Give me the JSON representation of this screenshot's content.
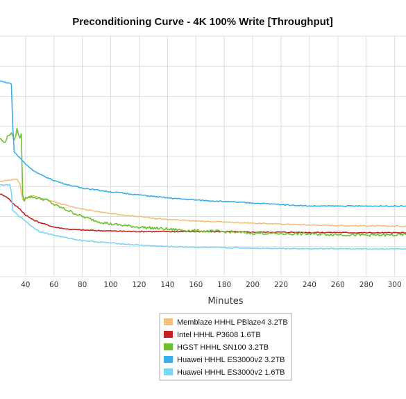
{
  "chart_data": {
    "type": "line",
    "title": "Preconditioning Curve - 4K 100% Write [Throughput]",
    "xlabel": "Minutes",
    "ylabel": "",
    "x_ticks": [
      40,
      60,
      80,
      100,
      120,
      140,
      160,
      180,
      200,
      220,
      240,
      260,
      280,
      300
    ],
    "xlim": [
      22,
      308
    ],
    "ylim": [
      0,
      8
    ],
    "grid": true,
    "legend": "bottom-center",
    "series": [
      {
        "name": "Memblaze HHHL PBlaze4 3.2TB",
        "color": "#f0c07a",
        "x": [
          22,
          26,
          30,
          34,
          36,
          38,
          40,
          45,
          50,
          55,
          60,
          70,
          80,
          90,
          100,
          120,
          140,
          160,
          180,
          200,
          220,
          240,
          260,
          280,
          300,
          308
        ],
        "y": [
          3.15,
          3.2,
          3.22,
          3.25,
          3.1,
          2.55,
          2.6,
          2.7,
          2.62,
          2.55,
          2.5,
          2.35,
          2.25,
          2.17,
          2.1,
          2.0,
          1.9,
          1.85,
          1.82,
          1.78,
          1.75,
          1.72,
          1.7,
          1.69,
          1.68,
          1.68
        ]
      },
      {
        "name": "Intel HHHL P3608 1.6TB",
        "color": "#c62020",
        "x": [
          22,
          25,
          28,
          32,
          36,
          40,
          45,
          50,
          60,
          70,
          80,
          100,
          120,
          140,
          160,
          180,
          200,
          220,
          240,
          260,
          280,
          300,
          308
        ],
        "y": [
          2.75,
          2.7,
          2.6,
          2.4,
          2.25,
          2.05,
          1.9,
          1.8,
          1.65,
          1.58,
          1.55,
          1.52,
          1.5,
          1.5,
          1.5,
          1.5,
          1.48,
          1.48,
          1.47,
          1.47,
          1.46,
          1.46,
          1.46
        ]
      },
      {
        "name": "HGST HHHL SN100 3.2TB",
        "color": "#6cc030",
        "x": [
          22,
          25,
          28,
          30,
          32,
          34,
          36,
          37,
          38,
          39,
          40,
          45,
          50,
          55,
          60,
          70,
          80,
          90,
          100,
          120,
          140,
          160,
          180,
          200,
          220,
          240,
          260,
          280,
          300,
          308
        ],
        "y": [
          4.6,
          4.45,
          4.7,
          4.8,
          4.5,
          4.9,
          4.6,
          4.75,
          2.7,
          2.55,
          2.65,
          2.65,
          2.6,
          2.55,
          2.4,
          2.2,
          2.0,
          1.85,
          1.75,
          1.65,
          1.58,
          1.52,
          1.5,
          1.45,
          1.43,
          1.42,
          1.4,
          1.38,
          1.38,
          1.4
        ]
      },
      {
        "name": "Huawei HHHL ES3000v2 3.2TB",
        "color": "#3aaee6",
        "x": [
          22,
          24,
          26,
          28,
          30,
          31,
          32,
          34,
          36,
          38,
          40,
          45,
          50,
          60,
          70,
          80,
          100,
          120,
          140,
          160,
          180,
          200,
          220,
          240,
          260,
          280,
          300,
          308
        ],
        "y": [
          6.5,
          6.5,
          6.45,
          6.45,
          6.4,
          5.0,
          4.15,
          4.05,
          3.95,
          3.85,
          3.75,
          3.55,
          3.4,
          3.2,
          3.05,
          2.95,
          2.82,
          2.72,
          2.62,
          2.55,
          2.5,
          2.45,
          2.4,
          2.35,
          2.35,
          2.35,
          2.35,
          2.35
        ]
      },
      {
        "name": "Huawei HHHL ES3000v2 1.6TB",
        "color": "#7ad4f6",
        "x": [
          22,
          26,
          29,
          30,
          31,
          32,
          36,
          40,
          45,
          50,
          60,
          70,
          80,
          100,
          120,
          140,
          160,
          180,
          200,
          220,
          240,
          260,
          280,
          300,
          308
        ],
        "y": [
          3.05,
          3.05,
          3.05,
          2.8,
          2.2,
          2.15,
          2.0,
          1.85,
          1.65,
          1.5,
          1.38,
          1.28,
          1.2,
          1.12,
          1.05,
          1.0,
          0.98,
          0.96,
          0.95,
          0.94,
          0.93,
          0.93,
          0.92,
          0.92,
          0.92
        ]
      }
    ]
  }
}
